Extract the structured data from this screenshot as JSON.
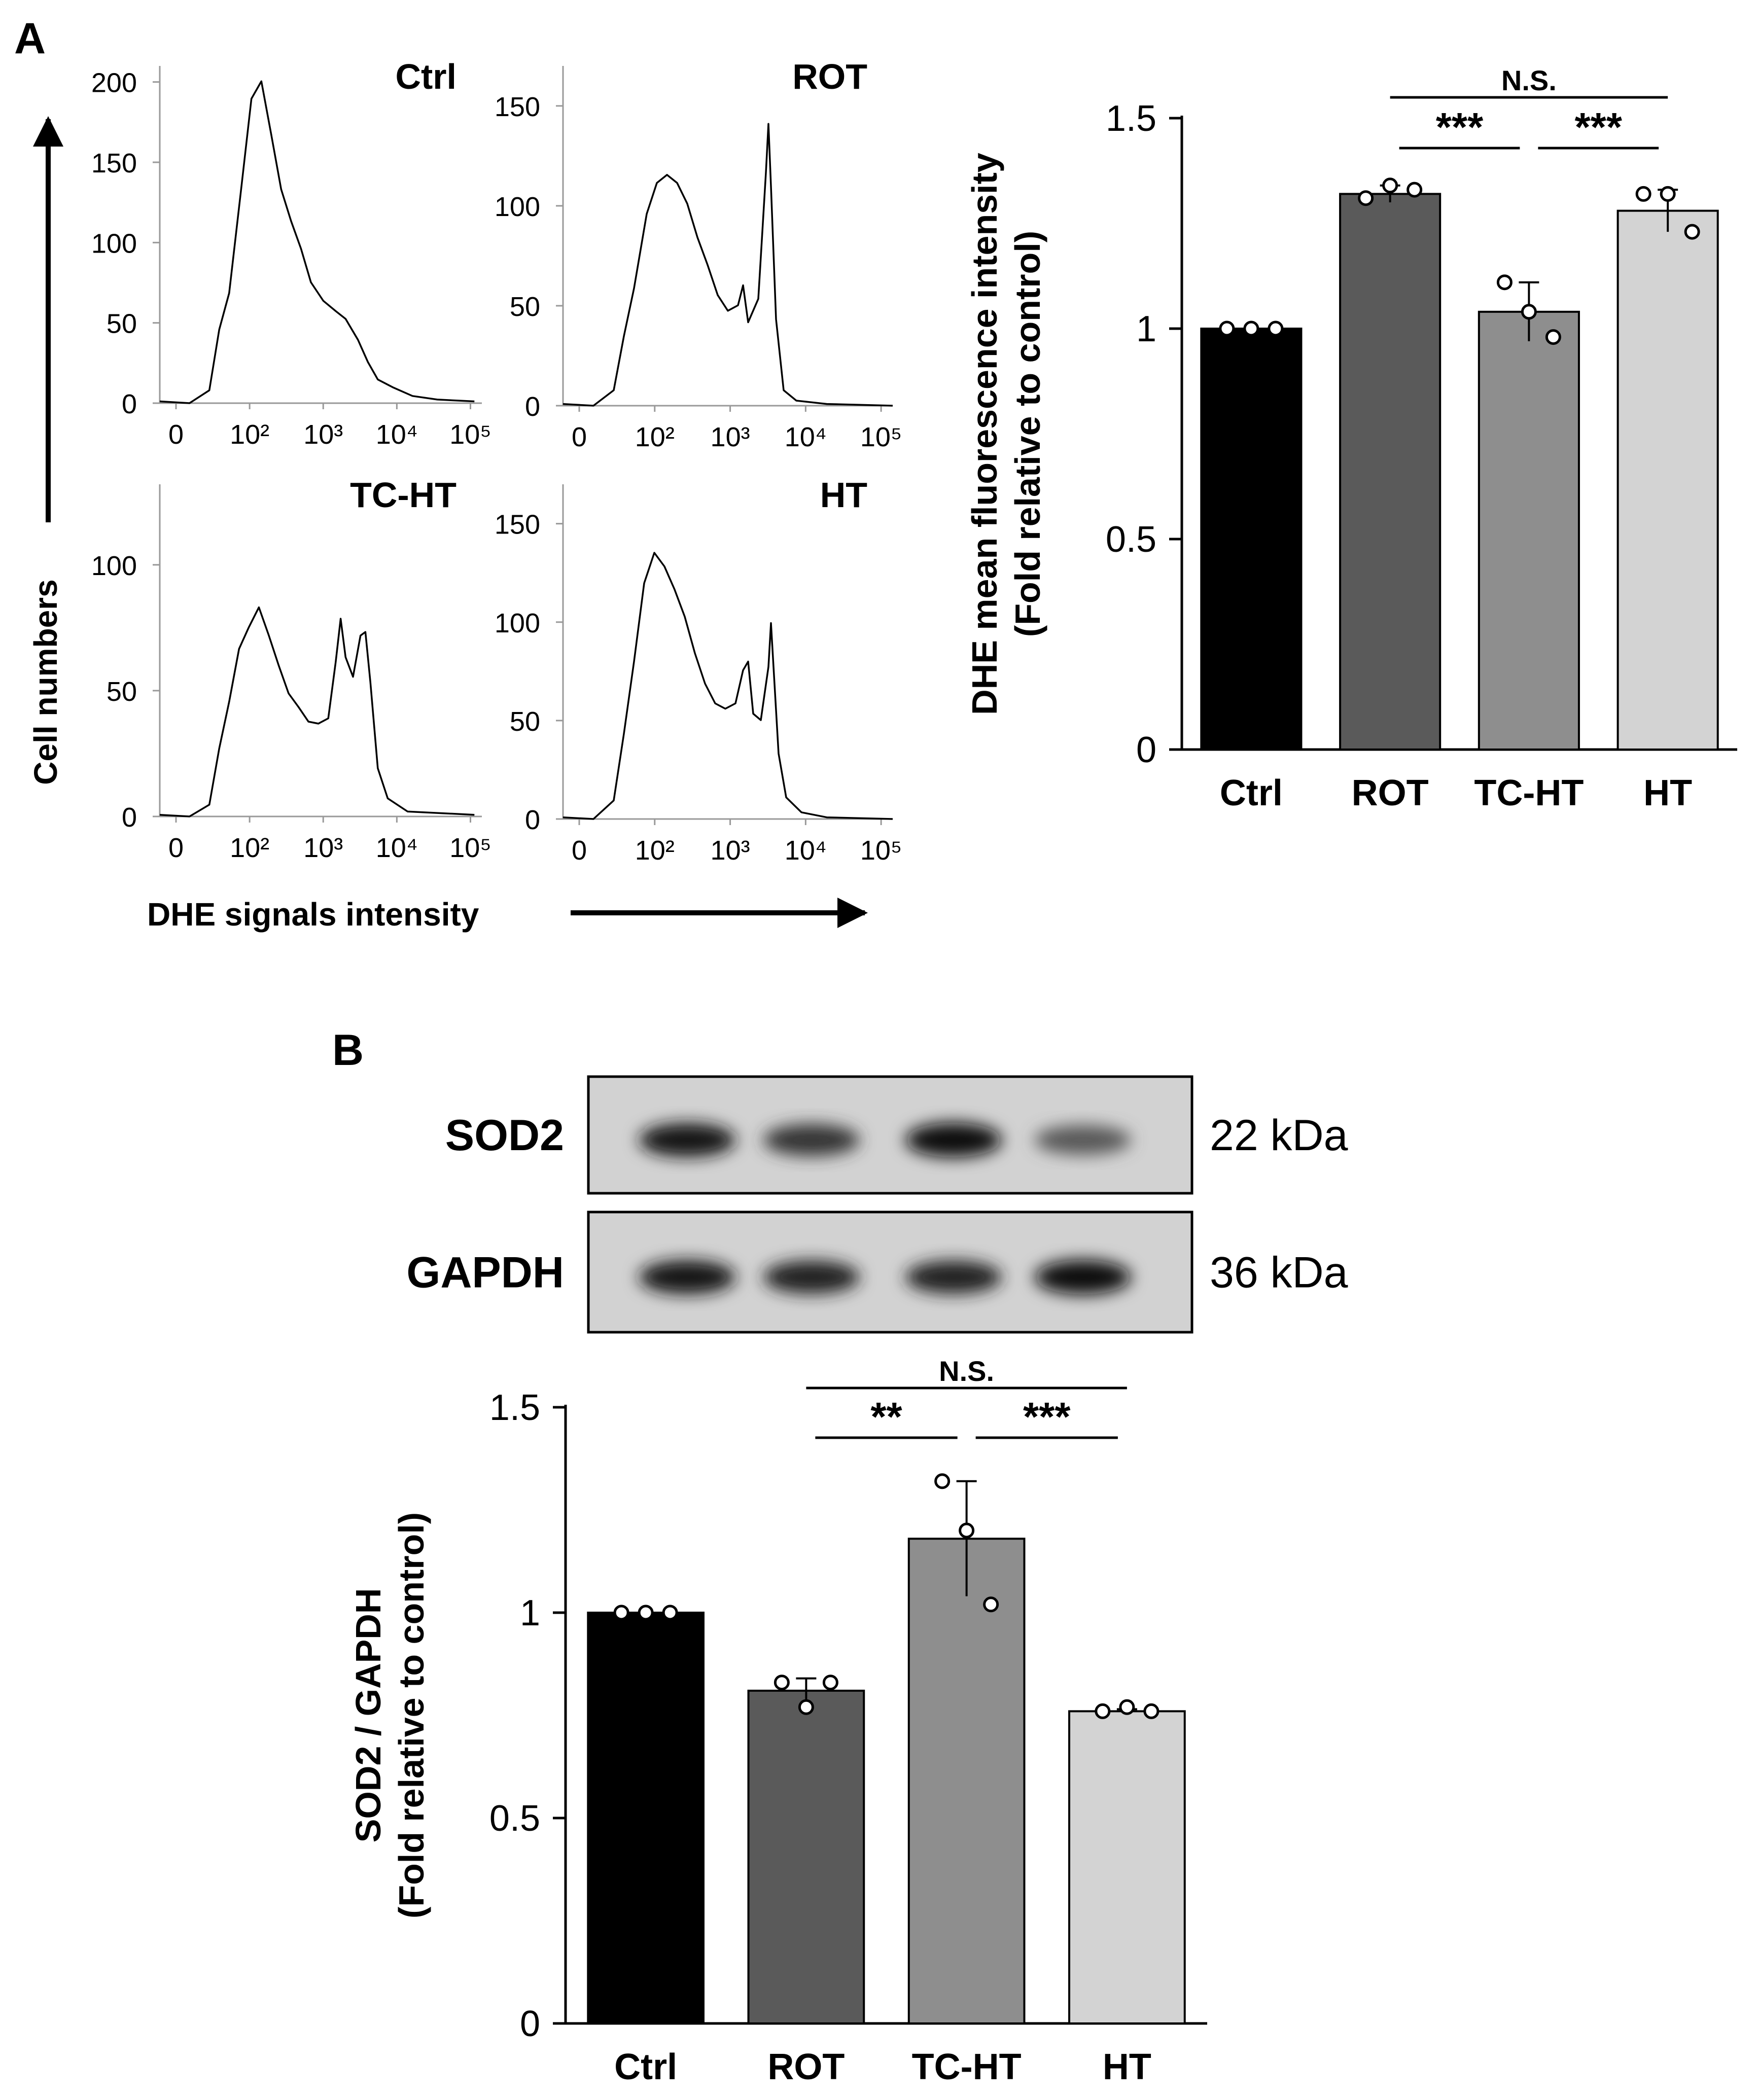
{
  "panel_a": {
    "label": "A",
    "y_label": "Cell numbers",
    "x_label": "DHE signals intensity",
    "histograms": [
      {
        "name": "Ctrl",
        "yticks": [
          "0",
          "50",
          "100",
          "150",
          "200"
        ],
        "ymax": 210
      },
      {
        "name": "ROT",
        "yticks": [
          "0",
          "50",
          "100",
          "150"
        ],
        "ymax": 170
      },
      {
        "name": "TC-HT",
        "yticks": [
          "0",
          "50",
          "100"
        ],
        "ymax": 132
      },
      {
        "name": "HT",
        "yticks": [
          "0",
          "50",
          "100",
          "150"
        ],
        "ymax": 170
      }
    ],
    "x_tick_labels": [
      "0",
      "10²",
      "10³",
      "10⁴",
      "10⁵"
    ]
  },
  "panel_b": {
    "label": "B",
    "blot": {
      "rows": [
        {
          "protein": "SOD2",
          "size": "22 kDa"
        },
        {
          "protein": "GAPDH",
          "size": "36 kDa"
        }
      ],
      "band_intensity": {
        "SOD2": [
          0.95,
          0.8,
          1.0,
          0.6
        ],
        "GAPDH": [
          0.95,
          0.9,
          0.9,
          1.0
        ]
      }
    }
  },
  "chart_data": [
    {
      "type": "bar",
      "categories": [
        "Ctrl",
        "ROT",
        "TC-HT",
        "HT"
      ],
      "values": [
        1.0,
        1.32,
        1.04,
        1.28
      ],
      "errors": [
        0.0,
        0.02,
        0.07,
        0.05
      ],
      "points": [
        [
          1.0,
          1.0,
          1.0
        ],
        [
          1.31,
          1.34,
          1.33
        ],
        [
          1.11,
          1.04,
          0.98
        ],
        [
          1.32,
          1.32,
          1.23
        ]
      ],
      "colors": [
        "#000000",
        "#5a5a5a",
        "#8e8e8e",
        "#d3d3d3"
      ],
      "ylabel": "DHE mean fluorescence intensity",
      "ylabel2": "(Fold relative to control)",
      "ylim": [
        0,
        1.5
      ],
      "yticks": [
        0,
        0.5,
        1,
        1.5
      ],
      "ytick_labels": [
        "0",
        "0.5",
        "1",
        "1.5"
      ],
      "significance": [
        {
          "from": 1,
          "to": 2,
          "label": "***"
        },
        {
          "from": 2,
          "to": 3,
          "label": "***"
        },
        {
          "from": 1,
          "to": 3,
          "label": "N.S."
        }
      ]
    },
    {
      "type": "bar",
      "categories": [
        "Ctrl",
        "ROT",
        "TC-HT",
        "HT"
      ],
      "values": [
        1.0,
        0.81,
        1.18,
        0.76
      ],
      "errors": [
        0.0,
        0.03,
        0.14,
        0.005
      ],
      "points": [
        [
          1.0,
          1.0,
          1.0
        ],
        [
          0.83,
          0.77,
          0.83
        ],
        [
          1.32,
          1.2,
          1.02
        ],
        [
          0.76,
          0.77,
          0.76
        ]
      ],
      "colors": [
        "#000000",
        "#5a5a5a",
        "#8e8e8e",
        "#d3d3d3"
      ],
      "ylabel": "SOD2 / GAPDH",
      "ylabel2": "(Fold relative to control)",
      "ylim": [
        0,
        1.5
      ],
      "yticks": [
        0,
        0.5,
        1,
        1.5
      ],
      "ytick_labels": [
        "0",
        "0.5",
        "1",
        "1.5"
      ],
      "significance": [
        {
          "from": 1,
          "to": 2,
          "label": "**"
        },
        {
          "from": 2,
          "to": 3,
          "label": "***"
        },
        {
          "from": 1,
          "to": 3,
          "label": "N.S."
        }
      ]
    }
  ]
}
